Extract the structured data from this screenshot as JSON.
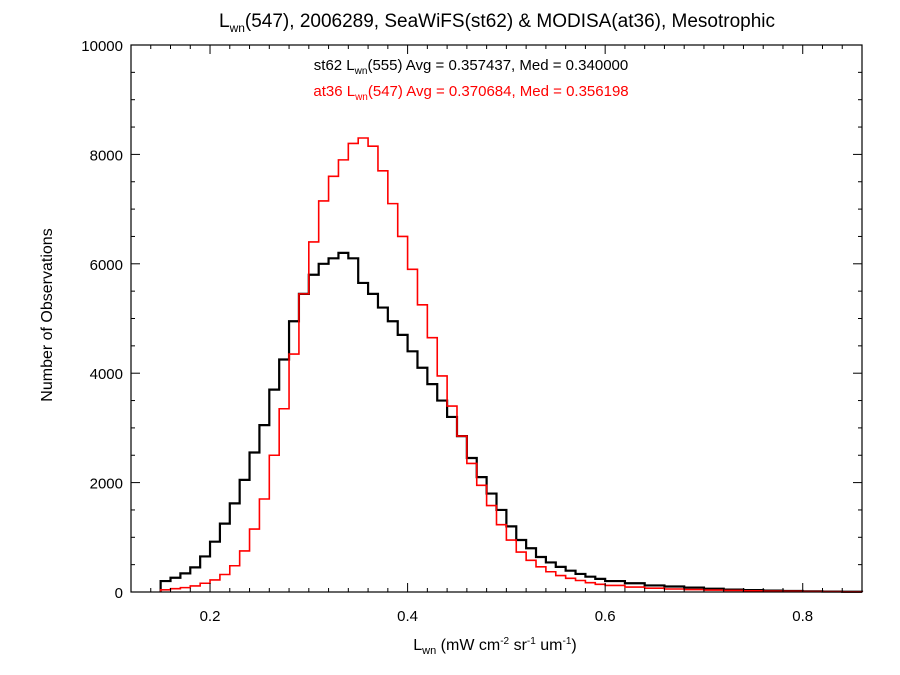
{
  "chart_data": {
    "type": "histogram-step",
    "title": {
      "prefix": "L",
      "sub": "wn",
      "rest": "(547), 2006289, SeaWiFS(st62) & MODISA(at36), Mesotrophic"
    },
    "xlabel": {
      "main": "L",
      "sub": "wn",
      "rest": " (mW cm",
      "sup1": "-2",
      "mid1": " sr",
      "sup2": "-1",
      "mid2": " um",
      "sup3": "-1",
      "end": ")"
    },
    "ylabel": "Number of Observations",
    "xlim": [
      0.12,
      0.86
    ],
    "ylim": [
      0,
      10000
    ],
    "xticks": [
      0.2,
      0.4,
      0.6,
      0.8
    ],
    "xtick_labels": [
      "0.2",
      "0.4",
      "0.6",
      "0.8"
    ],
    "yticks": [
      0,
      2000,
      4000,
      6000,
      8000,
      10000
    ],
    "ytick_labels": [
      "0",
      "2000",
      "4000",
      "6000",
      "8000",
      "10000"
    ],
    "grid": false,
    "series": [
      {
        "color": "#000000",
        "legend": {
          "pre": "st62 L",
          "sub": "wn",
          "post": "(555) Avg = 0.357437, Med = 0.340000"
        },
        "points": [
          [
            0.15,
            200
          ],
          [
            0.16,
            260
          ],
          [
            0.17,
            340
          ],
          [
            0.18,
            450
          ],
          [
            0.19,
            650
          ],
          [
            0.2,
            920
          ],
          [
            0.21,
            1250
          ],
          [
            0.22,
            1620
          ],
          [
            0.23,
            2050
          ],
          [
            0.24,
            2550
          ],
          [
            0.25,
            3050
          ],
          [
            0.26,
            3700
          ],
          [
            0.27,
            4250
          ],
          [
            0.28,
            4950
          ],
          [
            0.29,
            5450
          ],
          [
            0.3,
            5800
          ],
          [
            0.31,
            6000
          ],
          [
            0.32,
            6100
          ],
          [
            0.33,
            6200
          ],
          [
            0.34,
            6100
          ],
          [
            0.35,
            5650
          ],
          [
            0.36,
            5450
          ],
          [
            0.37,
            5200
          ],
          [
            0.38,
            4950
          ],
          [
            0.39,
            4700
          ],
          [
            0.4,
            4400
          ],
          [
            0.41,
            4100
          ],
          [
            0.42,
            3800
          ],
          [
            0.43,
            3500
          ],
          [
            0.44,
            3200
          ],
          [
            0.45,
            2850
          ],
          [
            0.46,
            2450
          ],
          [
            0.47,
            2100
          ],
          [
            0.48,
            1800
          ],
          [
            0.49,
            1500
          ],
          [
            0.5,
            1200
          ],
          [
            0.51,
            950
          ],
          [
            0.52,
            800
          ],
          [
            0.53,
            640
          ],
          [
            0.54,
            540
          ],
          [
            0.55,
            460
          ],
          [
            0.56,
            390
          ],
          [
            0.57,
            330
          ],
          [
            0.58,
            280
          ],
          [
            0.59,
            240
          ],
          [
            0.6,
            200
          ],
          [
            0.62,
            160
          ],
          [
            0.64,
            120
          ],
          [
            0.66,
            100
          ],
          [
            0.68,
            80
          ],
          [
            0.7,
            60
          ],
          [
            0.72,
            45
          ],
          [
            0.74,
            35
          ],
          [
            0.76,
            25
          ],
          [
            0.78,
            18
          ],
          [
            0.8,
            12
          ],
          [
            0.82,
            8
          ],
          [
            0.84,
            5
          ],
          [
            0.86,
            3
          ]
        ]
      },
      {
        "color": "#ff0000",
        "legend": {
          "pre": "at36 L",
          "sub": "wn",
          "post": "(547) Avg = 0.370684, Med = 0.356198"
        },
        "points": [
          [
            0.15,
            40
          ],
          [
            0.16,
            60
          ],
          [
            0.17,
            80
          ],
          [
            0.18,
            110
          ],
          [
            0.19,
            160
          ],
          [
            0.2,
            220
          ],
          [
            0.21,
            320
          ],
          [
            0.22,
            480
          ],
          [
            0.23,
            750
          ],
          [
            0.24,
            1150
          ],
          [
            0.25,
            1700
          ],
          [
            0.26,
            2500
          ],
          [
            0.27,
            3350
          ],
          [
            0.28,
            4350
          ],
          [
            0.29,
            5450
          ],
          [
            0.3,
            6400
          ],
          [
            0.31,
            7150
          ],
          [
            0.32,
            7600
          ],
          [
            0.33,
            7900
          ],
          [
            0.34,
            8200
          ],
          [
            0.35,
            8300
          ],
          [
            0.36,
            8150
          ],
          [
            0.37,
            7700
          ],
          [
            0.38,
            7100
          ],
          [
            0.39,
            6500
          ],
          [
            0.4,
            5900
          ],
          [
            0.41,
            5250
          ],
          [
            0.42,
            4650
          ],
          [
            0.43,
            3950
          ],
          [
            0.44,
            3400
          ],
          [
            0.45,
            2850
          ],
          [
            0.46,
            2350
          ],
          [
            0.47,
            1950
          ],
          [
            0.48,
            1580
          ],
          [
            0.49,
            1230
          ],
          [
            0.5,
            950
          ],
          [
            0.51,
            730
          ],
          [
            0.52,
            580
          ],
          [
            0.53,
            460
          ],
          [
            0.54,
            370
          ],
          [
            0.55,
            300
          ],
          [
            0.56,
            250
          ],
          [
            0.57,
            210
          ],
          [
            0.58,
            170
          ],
          [
            0.59,
            140
          ],
          [
            0.6,
            120
          ],
          [
            0.62,
            90
          ],
          [
            0.64,
            70
          ],
          [
            0.66,
            55
          ],
          [
            0.68,
            45
          ],
          [
            0.7,
            35
          ],
          [
            0.72,
            28
          ],
          [
            0.74,
            22
          ],
          [
            0.76,
            16
          ],
          [
            0.78,
            12
          ],
          [
            0.8,
            8
          ],
          [
            0.82,
            6
          ],
          [
            0.84,
            4
          ],
          [
            0.86,
            2
          ]
        ]
      }
    ]
  }
}
